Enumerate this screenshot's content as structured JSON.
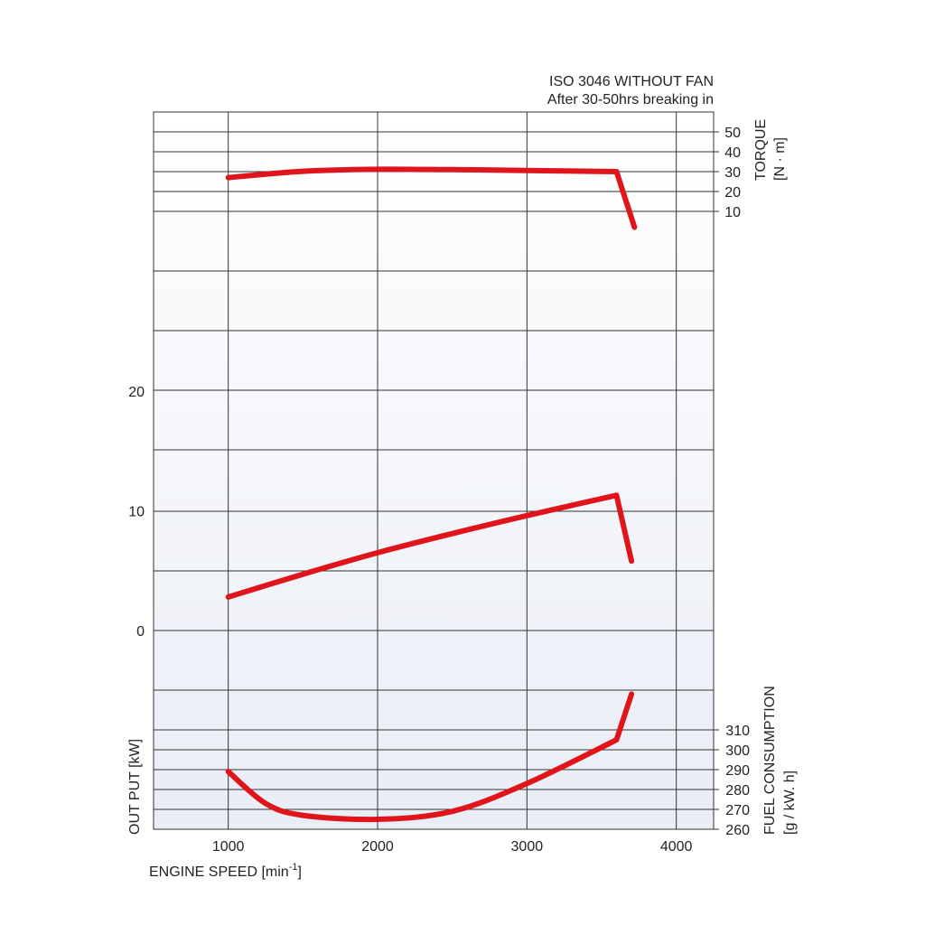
{
  "header": {
    "line1": "ISO 3046 WITHOUT FAN",
    "line2": "After 30-50hrs breaking in"
  },
  "chart_data": {
    "type": "line",
    "title": "ISO 3046 WITHOUT FAN",
    "subtitle": "After 30-50hrs breaking in",
    "grid": true,
    "xlabel": "ENGINE SPEED [min",
    "xlabel_sup": "-1",
    "xlabel_close": "]",
    "xlim": [
      500,
      4250
    ],
    "x_ticks": [
      1000,
      2000,
      3000,
      4000
    ],
    "axes": {
      "torque": {
        "label": "TORQUE",
        "unit": "[N · m]",
        "ticks": [
          10,
          20,
          30,
          40,
          50
        ],
        "side": "right"
      },
      "output": {
        "label": "OUT PUT [kW]",
        "ticks": [
          0,
          10,
          20
        ],
        "side": "left"
      },
      "fuel": {
        "label": "FUEL CONSUMPTION",
        "unit": "[g / kW. h]",
        "ticks": [
          260,
          270,
          280,
          290,
          300,
          310
        ],
        "side": "right"
      }
    },
    "series": [
      {
        "id": "torque",
        "axis": "torque",
        "color": "#e0141b",
        "points": [
          [
            1000,
            27
          ],
          [
            1500,
            30.2
          ],
          [
            2000,
            31.2
          ],
          [
            2500,
            31
          ],
          [
            3000,
            30.6
          ],
          [
            3600,
            30
          ],
          [
            3720,
            2
          ]
        ]
      },
      {
        "id": "output",
        "axis": "output",
        "color": "#e0141b",
        "points": [
          [
            1000,
            2.8
          ],
          [
            1500,
            4.7
          ],
          [
            2000,
            6.5
          ],
          [
            2500,
            8.1
          ],
          [
            3000,
            9.6
          ],
          [
            3600,
            11.3
          ],
          [
            3700,
            5.8
          ]
        ]
      },
      {
        "id": "fuel",
        "axis": "fuel",
        "color": "#e0141b",
        "points": [
          [
            1000,
            289
          ],
          [
            1250,
            273
          ],
          [
            1500,
            267
          ],
          [
            2000,
            265
          ],
          [
            2500,
            269
          ],
          [
            3000,
            283
          ],
          [
            3600,
            305
          ],
          [
            3700,
            328
          ]
        ]
      }
    ]
  }
}
